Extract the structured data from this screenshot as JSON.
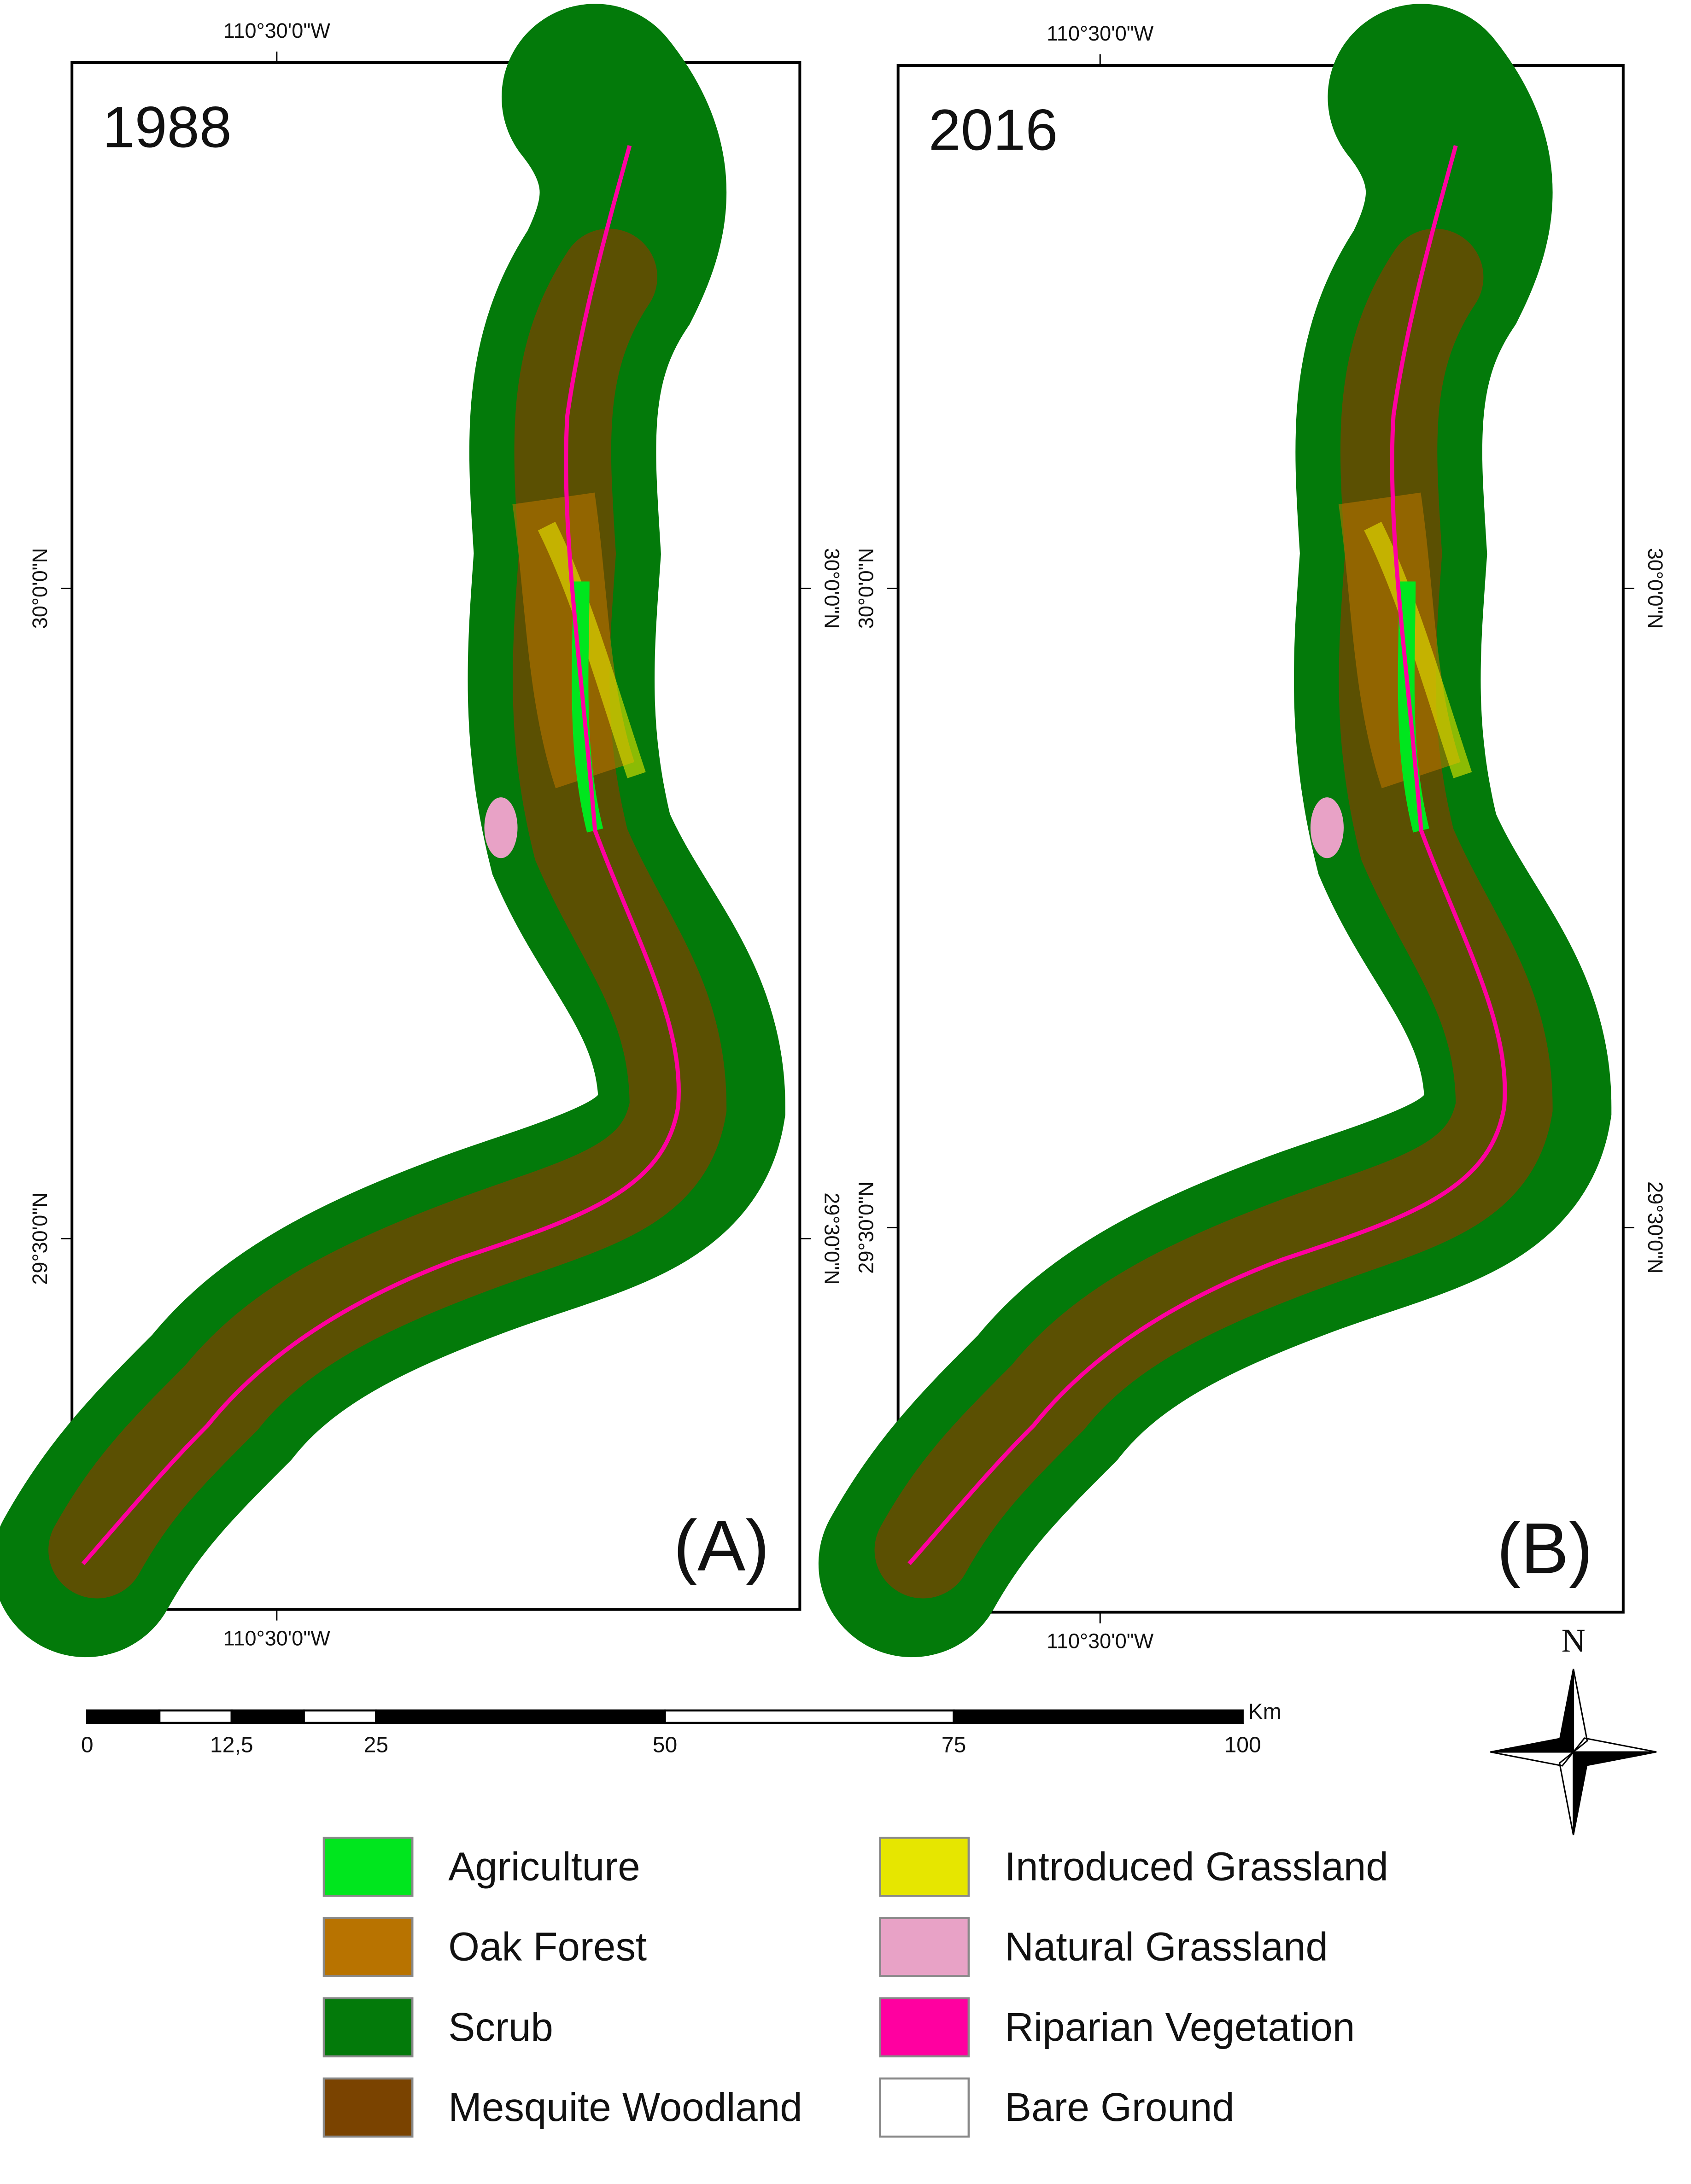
{
  "panels": [
    {
      "year": "1988",
      "letter": "(A)",
      "lon_top": "110°30'0\"W",
      "lon_bottom": "110°30'0\"W",
      "lat_left": [
        "30°0'0\"N",
        "29°30'0\"N"
      ],
      "lat_right": [
        "30°0'0\"N",
        "29°30'0\"N"
      ]
    },
    {
      "year": "2016",
      "letter": "(B)",
      "lon_top": "110°30'0\"W",
      "lon_bottom": "110°30'0\"W",
      "lat_left": [
        "30°0'0\"N",
        "29°30'0\"N"
      ],
      "lat_right": [
        "30°0'0\"N",
        "29°30'0\"N"
      ]
    }
  ],
  "scale_bar": {
    "unit": "Km",
    "ticks": [
      0,
      {
        "value": 12.5,
        "label": "12,5"
      },
      25,
      50,
      75,
      100
    ]
  },
  "north": "N",
  "legend": [
    {
      "name": "Agriculture",
      "color": "#00e61e"
    },
    {
      "name": "Oak Forest",
      "color": "#b87300"
    },
    {
      "name": "Scrub",
      "color": "#037a0a"
    },
    {
      "name": "Mesquite Woodland",
      "color": "#7a4300"
    },
    {
      "name": "Introduced Grassland",
      "color": "#e6e600"
    },
    {
      "name": "Natural Grassland",
      "color": "#e8a2c6"
    },
    {
      "name": "Riparian Vegetation",
      "color": "#ff00a0"
    },
    {
      "name": "Bare Ground",
      "color": "#ffffff"
    }
  ]
}
